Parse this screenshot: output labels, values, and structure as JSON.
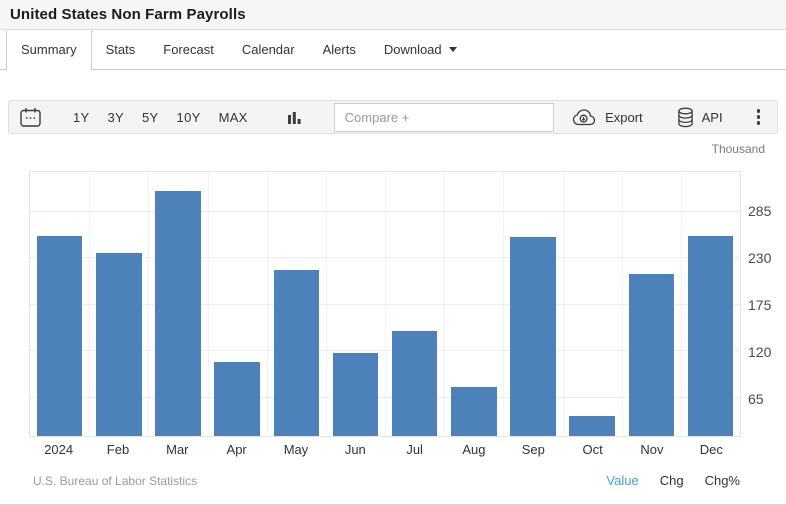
{
  "header": {
    "title": "United States Non Farm Payrolls"
  },
  "tabs": [
    {
      "label": "Summary",
      "active": true
    },
    {
      "label": "Stats",
      "active": false
    },
    {
      "label": "Forecast",
      "active": false
    },
    {
      "label": "Calendar",
      "active": false
    },
    {
      "label": "Alerts",
      "active": false
    },
    {
      "label": "Download",
      "active": false,
      "has_dropdown": true
    }
  ],
  "toolbar": {
    "calendar_icon": "calendar-icon",
    "ranges": [
      "1Y",
      "3Y",
      "5Y",
      "10Y",
      "MAX"
    ],
    "chart_type_icon": "bar-chart-icon",
    "compare_placeholder": "Compare +",
    "export_label": "Export",
    "export_icon": "cloud-download-icon",
    "api_label": "API",
    "api_icon": "database-icon",
    "more_icon": "kebab-menu-icon"
  },
  "chart_data": {
    "type": "bar",
    "title": "United States Non Farm Payrolls",
    "unit_label": "Thousand",
    "categories": [
      "2024",
      "Feb",
      "Mar",
      "Apr",
      "May",
      "Jun",
      "Jul",
      "Aug",
      "Sep",
      "Oct",
      "Nov",
      "Dec"
    ],
    "values": [
      256,
      236,
      310,
      108,
      216,
      118,
      144,
      78,
      255,
      44,
      212,
      256
    ],
    "xlabel": "",
    "ylabel": "Thousand",
    "yticks": [
      65,
      120,
      175,
      230,
      285
    ],
    "ylim": [
      20,
      332
    ],
    "axis_side": "right",
    "grid": true,
    "bar_color": "#4d81ba"
  },
  "footer": {
    "source": "U.S. Bureau of Labor Statistics",
    "links": [
      {
        "label": "Value",
        "active": true
      },
      {
        "label": "Chg",
        "active": false
      },
      {
        "label": "Chg%",
        "active": false
      }
    ],
    "active_link_color": "#46a0d7"
  }
}
